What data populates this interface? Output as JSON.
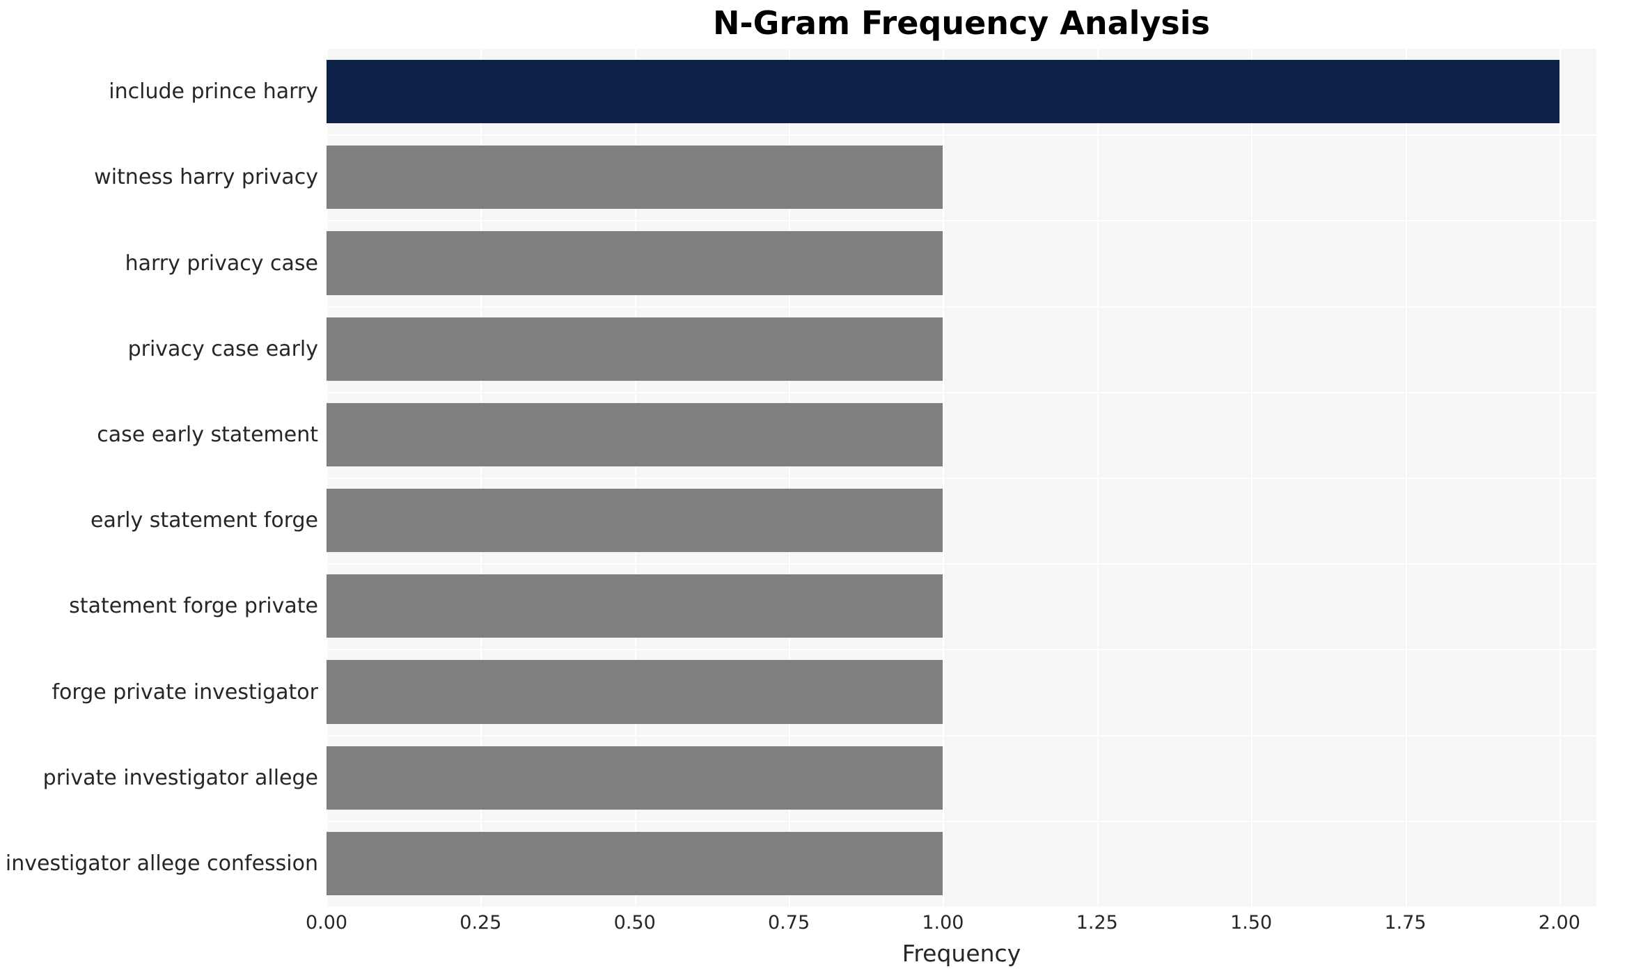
{
  "chart_data": {
    "type": "bar",
    "orientation": "horizontal",
    "title": "N-Gram Frequency Analysis",
    "xlabel": "Frequency",
    "ylabel": "",
    "categories": [
      "include prince harry",
      "witness harry privacy",
      "harry privacy case",
      "privacy case early",
      "case early statement",
      "early statement forge",
      "statement forge private",
      "forge private investigator",
      "private investigator allege",
      "investigator allege confession"
    ],
    "values": [
      2,
      1,
      1,
      1,
      1,
      1,
      1,
      1,
      1,
      1
    ],
    "xlim": [
      0,
      2.06
    ],
    "xticks": [
      0,
      0.25,
      0.5,
      0.75,
      1,
      1.25,
      1.5,
      1.75,
      2
    ],
    "xtick_labels": [
      "0.00",
      "0.25",
      "0.50",
      "0.75",
      "1.00",
      "1.25",
      "1.50",
      "1.75",
      "2.00"
    ],
    "bar_colors": [
      "#0d2149",
      "#7f7f7f",
      "#7f7f7f",
      "#7f7f7f",
      "#7f7f7f",
      "#7f7f7f",
      "#7f7f7f",
      "#7f7f7f",
      "#7f7f7f",
      "#7f7f7f"
    ],
    "highlight_color": "#0d2149",
    "default_bar_color": "#7f7f7f",
    "plot_background": "#f6f6f6",
    "grid": true,
    "grid_color": "#ffffff",
    "legend": "none"
  }
}
